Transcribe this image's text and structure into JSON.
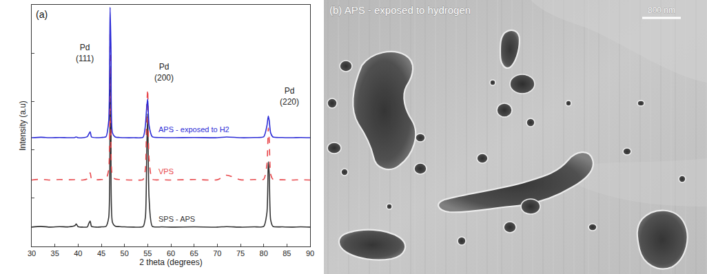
{
  "chart_data": {
    "type": "line",
    "x_label": "2 theta (degrees)",
    "y_label": "Intensity (a.u)",
    "xlim": [
      30,
      90
    ],
    "xticks": [
      30,
      35,
      40,
      45,
      50,
      55,
      60,
      65,
      70,
      75,
      80,
      85,
      90
    ],
    "ylim": [
      0,
      100
    ],
    "yticks": [
      0,
      20,
      40,
      60,
      80,
      100
    ],
    "tick_labels": "x",
    "grid": false,
    "x": [
      30,
      32,
      34,
      36,
      38,
      39.3,
      39.6,
      40,
      41,
      42,
      42.3,
      42.6,
      42.9,
      44,
      45,
      46,
      46.6,
      46.9,
      47.1,
      47.4,
      48,
      49,
      50,
      52,
      54,
      54.5,
      54.8,
      55.0,
      55.3,
      56,
      58,
      60,
      65,
      70,
      72,
      75,
      78,
      80,
      80.7,
      81.0,
      81.2,
      81.5,
      82,
      84,
      86,
      88,
      90
    ],
    "series": [
      {
        "name": "SPS - APS",
        "color": "#333333",
        "line_style": "solid",
        "values": [
          8,
          8.3,
          8,
          8.2,
          8.1,
          8.6,
          9.3,
          8.2,
          8,
          8.1,
          9.5,
          10.5,
          8.3,
          8,
          8.1,
          8.3,
          12,
          75,
          60,
          10,
          8.4,
          8.2,
          8.1,
          8,
          8.2,
          12,
          40,
          55,
          20,
          8.3,
          8.1,
          8,
          8.1,
          8,
          8.2,
          8,
          8.1,
          8.3,
          14,
          35,
          30,
          11,
          8.3,
          8.1,
          8,
          8.1,
          8
        ]
      },
      {
        "name": "VPS",
        "color": "#e8474b",
        "line_style": "dash",
        "values": [
          27.5,
          27.8,
          27.5,
          27.7,
          27.6,
          27.7,
          27.9,
          27.6,
          27.5,
          28,
          29.5,
          30.5,
          28,
          27.6,
          27.7,
          27.8,
          32,
          90,
          70,
          29,
          27.9,
          27.7,
          27.6,
          27.5,
          27.7,
          32,
          58,
          65,
          36,
          27.8,
          27.6,
          27.5,
          27.7,
          27.6,
          29.5,
          27.6,
          27.7,
          27.8,
          34,
          49,
          44,
          30,
          27.8,
          27.6,
          27.5,
          27.6,
          27.5
        ]
      },
      {
        "name": "APS - exposed to H2",
        "color": "#2b2bd6",
        "line_style": "solid",
        "values": [
          45,
          45.2,
          45,
          45.1,
          45,
          45.1,
          45.3,
          45,
          45,
          45.5,
          46.5,
          47.5,
          45.3,
          45,
          45.1,
          45.4,
          52,
          99,
          80,
          47,
          45.3,
          45.1,
          45,
          45,
          45.2,
          50,
          58,
          61,
          50,
          45.4,
          45.1,
          45,
          45.1,
          45,
          45.3,
          45,
          45.1,
          45.4,
          50,
          54,
          52,
          47,
          45.3,
          45.1,
          45,
          45.1,
          45
        ]
      }
    ],
    "annotations": [
      {
        "text": "(a)"
      },
      {
        "text": "Pd\n(111)",
        "x": 41.5,
        "y": 80
      },
      {
        "text": "Pd\n(200)",
        "x": 58.5,
        "y": 72
      },
      {
        "text": "Pd\n(220)",
        "x": 85.5,
        "y": 62
      }
    ]
  },
  "micrograph": {
    "label": "(b) APS - exposed to hydrogen",
    "scale_bar": "800 nm"
  }
}
